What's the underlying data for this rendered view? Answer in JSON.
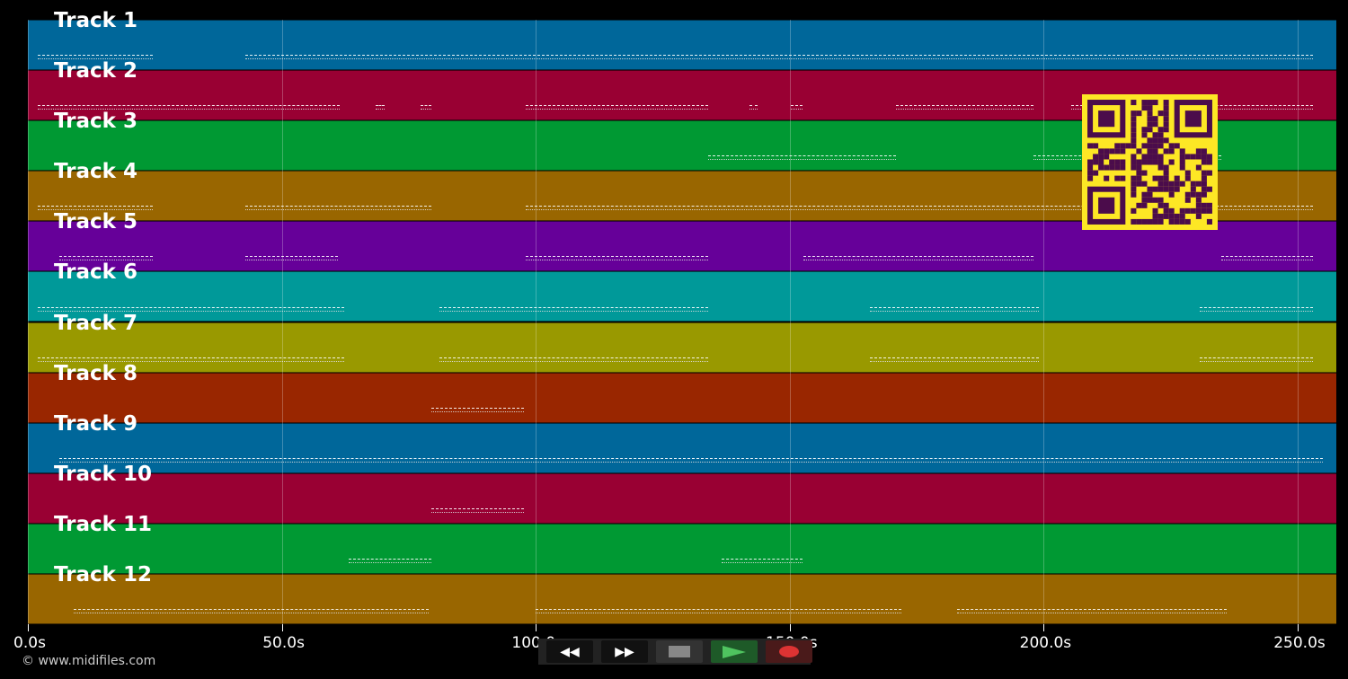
{
  "tracks": [
    {
      "label": "Track 1",
      "color": "#00679a",
      "notes": [
        [
          2,
          24.6
        ],
        [
          42.8,
          253
        ]
      ]
    },
    {
      "label": "Track 2",
      "color": "#990033",
      "notes": [
        [
          2,
          61.4
        ],
        [
          68.5,
          70.3
        ],
        [
          77.3,
          79.5
        ],
        [
          98,
          134
        ],
        [
          142,
          143.6
        ],
        [
          150.3,
          152.6
        ],
        [
          171,
          198
        ],
        [
          205.5,
          253
        ]
      ]
    },
    {
      "label": "Track 3",
      "color": "#009933",
      "notes": [
        [
          134,
          171
        ],
        [
          198,
          235
        ]
      ]
    },
    {
      "label": "Track 4",
      "color": "#996600",
      "notes": [
        [
          2,
          24.6
        ],
        [
          42.8,
          79.5
        ],
        [
          98,
          253
        ]
      ]
    },
    {
      "label": "Track 5",
      "color": "#660099",
      "notes": [
        [
          6.2,
          24.6
        ],
        [
          42.8,
          61
        ],
        [
          98,
          134
        ],
        [
          152.7,
          198
        ],
        [
          235,
          253
        ]
      ]
    },
    {
      "label": "Track 6",
      "color": "#009999",
      "notes": [
        [
          2,
          62.3
        ],
        [
          81,
          134
        ],
        [
          165.7,
          199
        ],
        [
          230.8,
          253
        ]
      ]
    },
    {
      "label": "Track 7",
      "color": "#999900",
      "notes": [
        [
          2,
          62.3
        ],
        [
          81,
          134
        ],
        [
          165.7,
          199
        ],
        [
          230.8,
          253
        ]
      ]
    },
    {
      "label": "Track 8",
      "color": "#992600",
      "notes": [
        [
          79.5,
          97.7
        ]
      ]
    },
    {
      "label": "Track 9",
      "color": "#00679a",
      "notes": [
        [
          6.2,
          255
        ]
      ]
    },
    {
      "label": "Track 10",
      "color": "#990033",
      "notes": [
        [
          79.5,
          97.7
        ]
      ]
    },
    {
      "label": "Track 11",
      "color": "#009933",
      "notes": [
        [
          63.2,
          79.5
        ],
        [
          136.6,
          152.6
        ]
      ]
    },
    {
      "label": "Track 12",
      "color": "#996600",
      "notes": [
        [
          9,
          79
        ],
        [
          100,
          172
        ],
        [
          183,
          236
        ]
      ]
    }
  ],
  "axis": {
    "max_seconds": 257.7,
    "ticks": [
      "0.0s",
      "50.0s",
      "100.0s",
      "150.0s",
      "200.0s",
      "250.0s"
    ],
    "tick_values": [
      0,
      50,
      100,
      150,
      200,
      250
    ]
  },
  "copyright": "© www.midifiles.com",
  "controls": {
    "rewind": "◀◀",
    "forward": "▶▶",
    "stop": "stop",
    "play": "play",
    "record": "record"
  }
}
